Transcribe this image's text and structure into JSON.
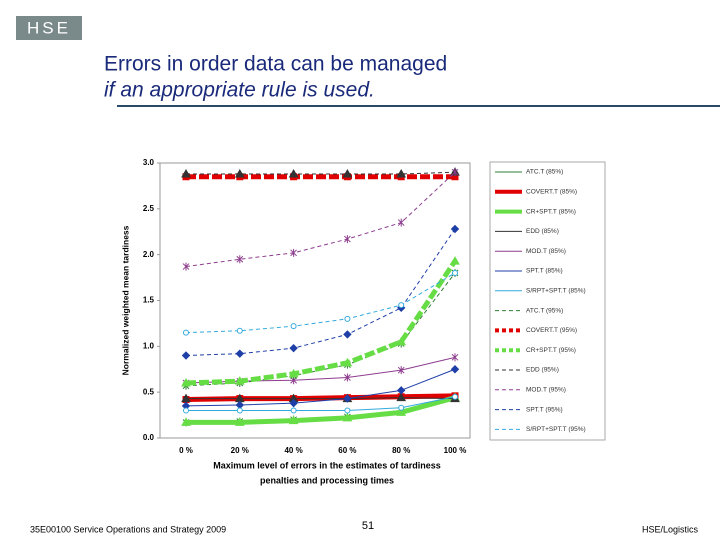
{
  "slide": {
    "logo": "HSE",
    "title_line1": "Errors in order data can be managed",
    "title_line2": "if an appropriate rule is used.",
    "footer_left": "35E00100 Service Operations and Strategy 2009",
    "page_number": "51",
    "footer_right": "HSE/Logistics"
  },
  "chart_data": {
    "type": "line",
    "ylabel": "Normalized weighted mean tardiness",
    "xlabel": [
      "Maximum level of errors in the estimates of tardiness",
      "penalties and processing times"
    ],
    "categories": [
      "0 %",
      "20 %",
      "40 %",
      "60 %",
      "80 %",
      "100 %"
    ],
    "ylim": [
      0,
      3
    ],
    "yticks": [
      {
        "value": 0,
        "label": "0.0"
      },
      0.5,
      {
        "value": 1,
        "label": "1.0"
      },
      1.5,
      {
        "value": 2,
        "label": "2.0"
      },
      2.5,
      {
        "value": 3,
        "label": "3.0"
      }
    ],
    "grid": false,
    "legend": "right",
    "series": [
      {
        "name": "ATC.T (85%)",
        "color": "#2e7d32",
        "style": "solid",
        "width": 1,
        "marker": "x",
        "values": [
          0.17,
          0.18,
          0.2,
          0.23,
          0.3,
          0.45
        ]
      },
      {
        "name": "COVERT.T (85%)",
        "color": "#e00000",
        "style": "solid",
        "width": 5,
        "marker": "square",
        "values": [
          0.42,
          0.43,
          0.43,
          0.44,
          0.45,
          0.46
        ]
      },
      {
        "name": "CR+SPT.T (85%)",
        "color": "#66dd44",
        "style": "solid",
        "width": 5,
        "marker": "triangle",
        "values": [
          0.17,
          0.17,
          0.19,
          0.22,
          0.28,
          0.44
        ]
      },
      {
        "name": "EDD (85%)",
        "color": "#333333",
        "style": "solid",
        "width": 1,
        "marker": "triangle",
        "values": [
          0.43,
          0.43,
          0.43,
          0.43,
          0.44,
          0.43
        ]
      },
      {
        "name": "MOD.T (85%)",
        "color": "#8e3c8e",
        "style": "solid",
        "width": 1,
        "marker": "x",
        "values": [
          0.6,
          0.62,
          0.63,
          0.66,
          0.74,
          0.88
        ]
      },
      {
        "name": "SPT.T (85%)",
        "color": "#1f3fa8",
        "style": "solid",
        "width": 1,
        "marker": "diamond",
        "values": [
          0.35,
          0.36,
          0.38,
          0.43,
          0.52,
          0.75
        ]
      },
      {
        "name": "S/RPT+SPT.T (85%)",
        "color": "#33aadd",
        "style": "solid",
        "width": 1,
        "marker": "circle",
        "values": [
          0.3,
          0.3,
          0.3,
          0.3,
          0.33,
          0.45
        ]
      },
      {
        "name": "ATC.T (95%)",
        "color": "#2e7d32",
        "style": "dashed",
        "width": 1,
        "marker": "x",
        "values": [
          0.57,
          0.6,
          0.68,
          0.8,
          1.03,
          1.8
        ]
      },
      {
        "name": "COVERT.T (95%)",
        "color": "#e00000",
        "style": "dashed",
        "width": 5,
        "marker": "square",
        "values": [
          2.85,
          2.85,
          2.85,
          2.85,
          2.85,
          2.85
        ]
      },
      {
        "name": "CR+SPT.T (95%)",
        "color": "#66dd44",
        "style": "dashed",
        "width": 5,
        "marker": "triangle",
        "values": [
          0.6,
          0.62,
          0.7,
          0.82,
          1.05,
          1.93
        ]
      },
      {
        "name": "EDD (95%)",
        "color": "#333333",
        "style": "dashed",
        "width": 1,
        "marker": "triangle",
        "values": [
          2.88,
          2.88,
          2.88,
          2.88,
          2.88,
          2.9
        ]
      },
      {
        "name": "MOD.T (95%)",
        "color": "#8e3c8e",
        "style": "dashed",
        "width": 1,
        "marker": "x",
        "values": [
          1.87,
          1.95,
          2.02,
          2.17,
          2.35,
          2.9
        ]
      },
      {
        "name": "SPT.T (95%)",
        "color": "#1f3fa8",
        "style": "dashed",
        "width": 1,
        "marker": "diamond",
        "values": [
          0.9,
          0.92,
          0.98,
          1.13,
          1.42,
          2.28
        ]
      },
      {
        "name": "S/RPT+SPT.T (95%)",
        "color": "#33aadd",
        "style": "dashed",
        "width": 1,
        "marker": "circle",
        "values": [
          1.15,
          1.17,
          1.22,
          1.3,
          1.45,
          1.8
        ]
      }
    ]
  }
}
